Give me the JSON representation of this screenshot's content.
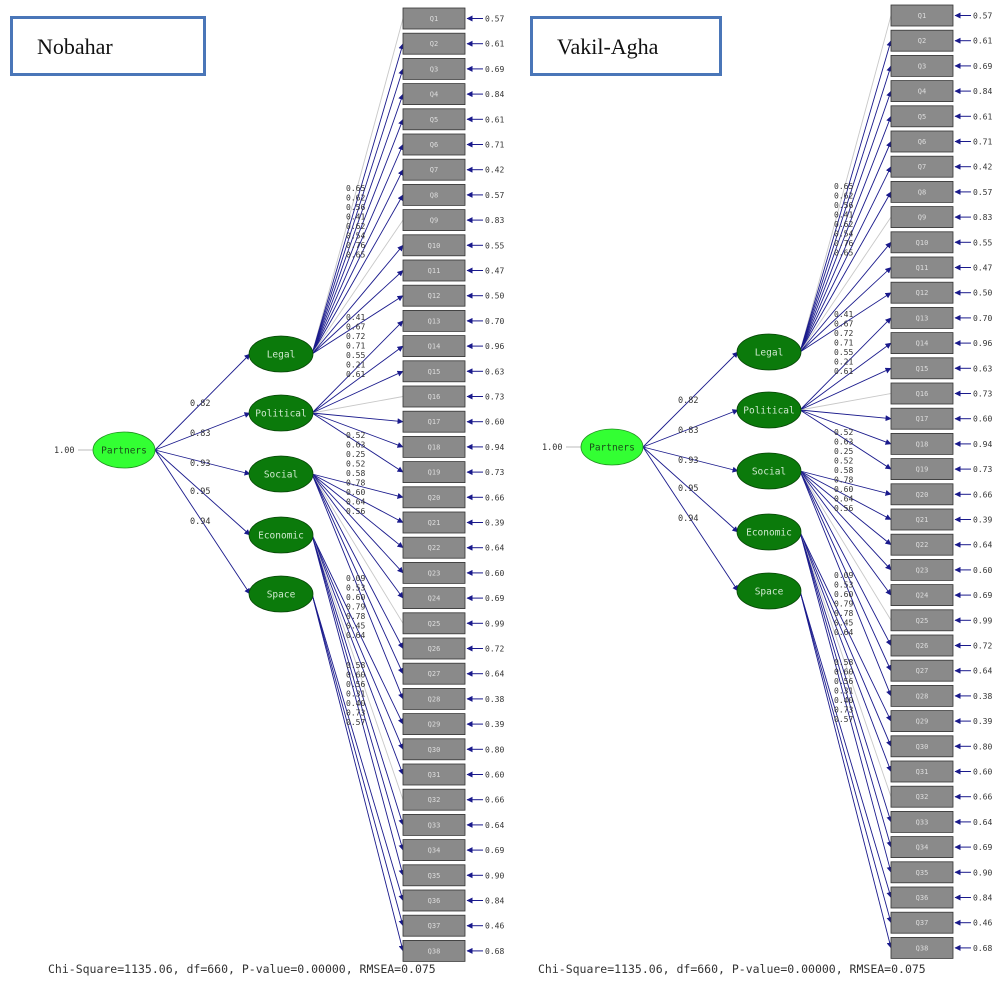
{
  "diagrams": [
    {
      "title": "Nobahar"
    },
    {
      "title": "Vakil-Agha"
    }
  ],
  "root": {
    "label": "Partners",
    "variance": "1.00"
  },
  "factors": [
    {
      "label": "Legal",
      "loading": "0.82"
    },
    {
      "label": "Political",
      "loading": "0.83"
    },
    {
      "label": "Social",
      "loading": "0.93"
    },
    {
      "label": "Economic",
      "loading": "0.95"
    },
    {
      "label": "Space",
      "loading": "0.94"
    }
  ],
  "items": [
    "Q1",
    "Q2",
    "Q3",
    "Q4",
    "Q5",
    "Q6",
    "Q7",
    "Q8",
    "Q9",
    "Q10",
    "Q11",
    "Q12",
    "Q13",
    "Q14",
    "Q15",
    "Q16",
    "Q17",
    "Q18",
    "Q19",
    "Q20",
    "Q21",
    "Q22",
    "Q23",
    "Q24",
    "Q25",
    "Q26",
    "Q27",
    "Q28",
    "Q29",
    "Q30",
    "Q31",
    "Q32",
    "Q33",
    "Q34",
    "Q35",
    "Q36",
    "Q37",
    "Q38"
  ],
  "error_variances": [
    "0.57",
    "0.61",
    "0.69",
    "0.84",
    "0.61",
    "0.71",
    "0.42",
    "0.57",
    "0.83",
    "0.55",
    "0.47",
    "0.50",
    "0.70",
    "0.96",
    "0.63",
    "0.73",
    "0.60",
    "0.94",
    "0.73",
    "0.66",
    "0.39",
    "0.64",
    "0.60",
    "0.69",
    "0.99",
    "0.72",
    "0.64",
    "0.38",
    "0.39",
    "0.80",
    "0.60",
    "0.66",
    "0.64",
    "0.69",
    "0.90",
    "0.84",
    "0.46",
    "0.68"
  ],
  "item_loadings": {
    "Legal": [
      "0.65",
      "0.62",
      "0.56",
      "0.41",
      "0.62",
      "0.54",
      "0.76",
      "0.65"
    ],
    "Political": [
      "0.41",
      "0.67",
      "0.72",
      "0.71",
      "0.55",
      "0.21",
      "0.61"
    ],
    "Social": [
      "0.52",
      "0.63",
      "0.25",
      "0.52",
      "0.58",
      "0.78",
      "0.60",
      "0.64",
      "0.56"
    ],
    "Economic": [
      "0.09",
      "0.53",
      "0.60",
      "0.79",
      "0.78",
      "0.45",
      "0.64"
    ],
    "Space": [
      "0.58",
      "0.60",
      "0.56",
      "0.31",
      "0.40",
      "0.73",
      "0.57"
    ]
  },
  "fit_statistics": "Chi-Square=1135.06, df=660, P-value=0.00000, RMSEA=0.075",
  "colors": {
    "root_fill": "#33ff33",
    "factor_fill": "#0b7a0b",
    "item_fill": "#8a8a8a",
    "arrow": "#1a1a8c",
    "frame": "#4a76b8"
  }
}
